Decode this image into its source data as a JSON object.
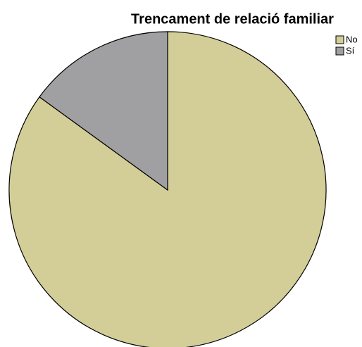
{
  "chart_data": {
    "type": "pie",
    "title": "Trencament de relació familiar",
    "categories": [
      "No",
      "Sí"
    ],
    "values": [
      85,
      15
    ],
    "colors": [
      "#d3ce97",
      "#a0a0a2"
    ],
    "legend": "top-right",
    "start": "top",
    "direction": "clockwise"
  }
}
